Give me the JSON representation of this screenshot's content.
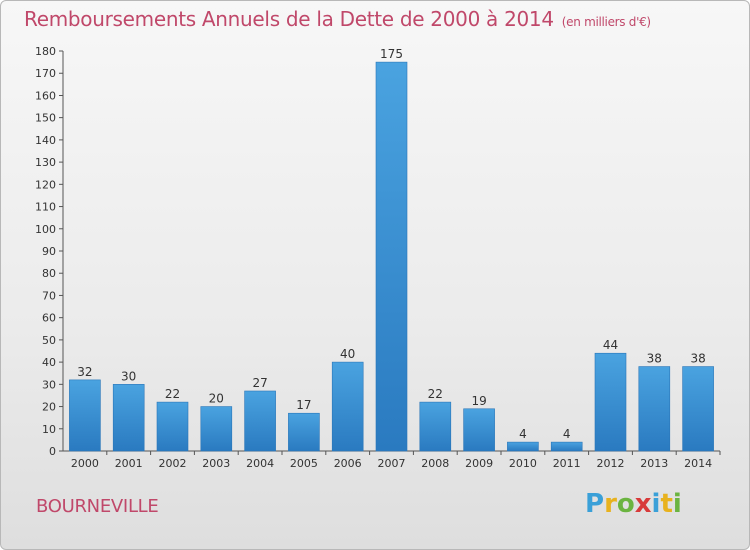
{
  "header": {
    "title": "Remboursements Annuels de la Dette de 2000 à 2014",
    "unit": "(en milliers d'€)"
  },
  "footer": {
    "city": "BOURNEVILLE",
    "logo_letters": [
      "P",
      "r",
      "o",
      "x",
      "i",
      "t",
      "i"
    ],
    "logo_colors": [
      "#3aa0d8",
      "#e8b21e",
      "#6bb440",
      "#d83a3a",
      "#3aa0d8",
      "#e8b21e",
      "#6bb440"
    ]
  },
  "colors": {
    "bar": "#3f96d6",
    "bar_dark": "#2a7ac0",
    "text": "#333333",
    "title": "#c0486a"
  },
  "chart_data": {
    "type": "bar",
    "title": "Remboursements Annuels de la Dette de 2000 à 2014",
    "subtitle": "(en milliers d'€)",
    "categories": [
      "2000",
      "2001",
      "2002",
      "2003",
      "2004",
      "2005",
      "2006",
      "2007",
      "2008",
      "2009",
      "2010",
      "2011",
      "2012",
      "2013",
      "2014"
    ],
    "values": [
      32,
      30,
      22,
      20,
      27,
      17,
      40,
      175,
      22,
      19,
      4,
      4,
      44,
      38,
      38
    ],
    "ylim": [
      0,
      180
    ],
    "yticks": [
      0,
      10,
      20,
      30,
      40,
      50,
      60,
      70,
      80,
      90,
      100,
      110,
      120,
      130,
      140,
      150,
      160,
      170,
      180
    ],
    "grid": false,
    "show_value_labels": true
  }
}
